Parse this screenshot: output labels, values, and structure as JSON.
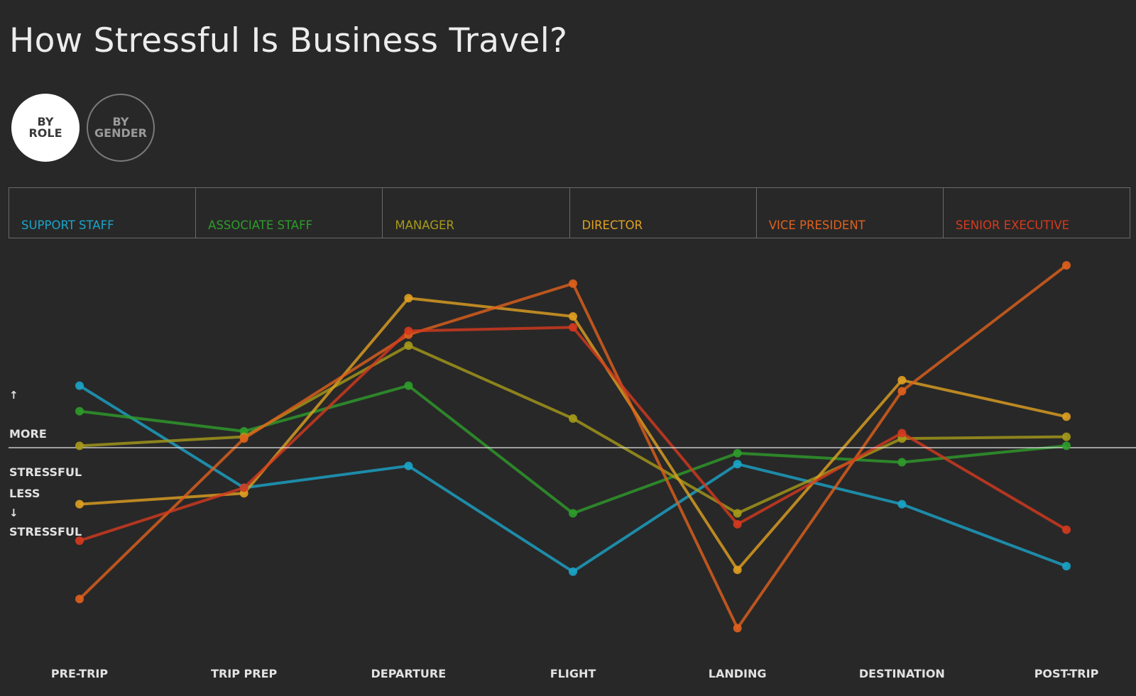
{
  "title": "How Stressful Is Business Travel?",
  "toggles": {
    "role_line1": "BY",
    "role_line2": "ROLE",
    "gender_line1": "BY",
    "gender_line2": "GENDER"
  },
  "y_axis": {
    "more_label_line1": "MORE",
    "more_label_line2": "STRESSFUL",
    "less_label_line1": "LESS",
    "less_label_line2": "STRESSFUL",
    "up_arrow": "↑",
    "down_arrow": "↓"
  },
  "chart_data": {
    "type": "line",
    "title": "How Stressful Is Business Travel?",
    "categories": [
      "PRE-TRIP",
      "TRIP PREP",
      "DEPARTURE",
      "FLIGHT",
      "LANDING",
      "DESTINATION",
      "POST-TRIP"
    ],
    "baseline": 0,
    "ylim": [
      -100,
      100
    ],
    "grid": false,
    "legend_position": "top",
    "series": [
      {
        "name": "SUPPORT STAFF",
        "color": "#1aa4c8",
        "values": [
          34,
          -22,
          -10,
          -68,
          -9,
          -31,
          -65
        ]
      },
      {
        "name": "ASSOCIATE STAFF",
        "color": "#2e9c2a",
        "values": [
          20,
          9,
          34,
          -36,
          -3,
          -8,
          1
        ]
      },
      {
        "name": "MANAGER",
        "color": "#a69a19",
        "values": [
          1,
          6,
          56,
          16,
          -36,
          5,
          6
        ]
      },
      {
        "name": "DIRECTOR",
        "color": "#e0a020",
        "values": [
          -31,
          -25,
          82,
          72,
          -67,
          37,
          17
        ]
      },
      {
        "name": "VICE PRESIDENT",
        "color": "#e0601c",
        "values": [
          -83,
          5,
          62,
          90,
          -99,
          31,
          100
        ]
      },
      {
        "name": "SENIOR EXECUTIVE",
        "color": "#d63a1e",
        "values": [
          -51,
          -22,
          64,
          66,
          -42,
          8,
          -45
        ]
      }
    ]
  }
}
